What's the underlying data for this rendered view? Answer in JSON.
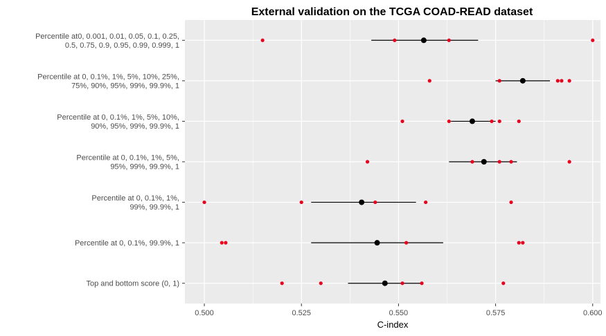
{
  "chart_data": {
    "type": "scatter",
    "title": "External validation on the TCGA COAD-READ dataset",
    "xlabel": "C-index",
    "ylabel": "",
    "xlim": [
      0.495,
      0.602
    ],
    "xticks": [
      0.5,
      0.525,
      0.55,
      0.575,
      0.6
    ],
    "xtick_labels": [
      "0.500",
      "0.525",
      "0.550",
      "0.575",
      "0.600"
    ],
    "grid": true,
    "colors": {
      "panel": "#ebebeb",
      "grid": "#ffffff",
      "points": "#e8001c",
      "summary": "#000000"
    },
    "categories": [
      {
        "label_lines": [
          "Percentile at0, 0.001, 0.01, 0.05, 0.1, 0.25,",
          "0.5, 0.75, 0.9, 0.95, 0.99, 0.999, 1"
        ],
        "points": [
          0.515,
          0.549,
          0.563,
          0.6
        ],
        "mean": 0.5565,
        "ci": [
          0.543,
          0.5705
        ]
      },
      {
        "label_lines": [
          "Percentile at 0, 0.1%, 1%, 5%, 10%, 25%,",
          "75%, 90%, 95%, 99%, 99.9%, 1"
        ],
        "points": [
          0.558,
          0.576,
          0.591,
          0.592,
          0.594
        ],
        "mean": 0.582,
        "ci": [
          0.575,
          0.589
        ]
      },
      {
        "label_lines": [
          "Percentile at 0, 0.1%, 1%, 5%, 10%,",
          "90%, 95%, 99%, 99.9%, 1"
        ],
        "points": [
          0.551,
          0.563,
          0.574,
          0.576,
          0.581
        ],
        "mean": 0.569,
        "ci": [
          0.5635,
          0.575
        ]
      },
      {
        "label_lines": [
          "Percentile at 0, 0.1%, 1%, 5%,",
          "95%, 99%, 99.9%, 1"
        ],
        "points": [
          0.542,
          0.569,
          0.576,
          0.579,
          0.594
        ],
        "mean": 0.572,
        "ci": [
          0.563,
          0.5805
        ]
      },
      {
        "label_lines": [
          "Percentile at 0, 0.1%, 1%,",
          "99%, 99.9%, 1"
        ],
        "points": [
          0.5,
          0.525,
          0.544,
          0.557,
          0.579
        ],
        "mean": 0.5405,
        "ci": [
          0.5275,
          0.5545
        ]
      },
      {
        "label_lines": [
          "Percentile at 0, 0.1%, 99.9%, 1"
        ],
        "points": [
          0.5045,
          0.5055,
          0.552,
          0.581,
          0.582
        ],
        "mean": 0.5445,
        "ci": [
          0.5275,
          0.5615
        ]
      },
      {
        "label_lines": [
          "Top and bottom score (0, 1)"
        ],
        "points": [
          0.52,
          0.53,
          0.551,
          0.556,
          0.577
        ],
        "mean": 0.5465,
        "ci": [
          0.537,
          0.556
        ]
      }
    ]
  }
}
